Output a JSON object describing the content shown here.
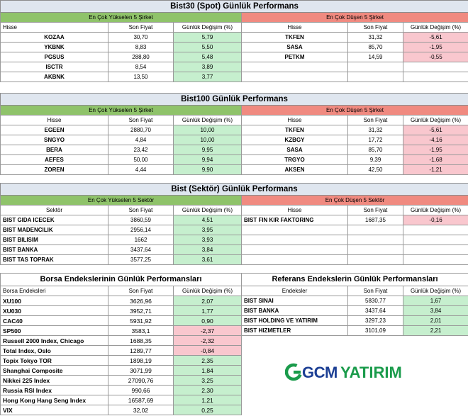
{
  "bist30": {
    "title": "Bist30 (Spot) Günlük Performans",
    "up_header": "En Çok Yükselen 5 Şirket",
    "down_header": "En Çok Düşen 5 Şirket",
    "cols": [
      "Hisse",
      "Son Fiyat",
      "Günlük Değişim (%)"
    ],
    "up": [
      [
        "KOZAA",
        "30,70",
        "5,79"
      ],
      [
        "YKBNK",
        "8,83",
        "5,50"
      ],
      [
        "PGSUS",
        "288,80",
        "5,48"
      ],
      [
        "ISCTR",
        "8,54",
        "3,89"
      ],
      [
        "AKBNK",
        "13,50",
        "3,77"
      ]
    ],
    "down": [
      [
        "TKFEN",
        "31,32",
        "-5,61"
      ],
      [
        "SASA",
        "85,70",
        "-1,95"
      ],
      [
        "PETKM",
        "14,59",
        "-0,55"
      ],
      [
        "",
        "",
        ""
      ],
      [
        "",
        "",
        ""
      ]
    ]
  },
  "bist100": {
    "title": "Bist100 Günlük Performans",
    "up_header": "En Çok Yükselen 5 Şirket",
    "down_header": "En Çok Düşen 5 Şirket",
    "cols": [
      "Hisse",
      "Son Fiyat",
      "Günlük Değişim (%)"
    ],
    "up": [
      [
        "EGEEN",
        "2880,70",
        "10,00"
      ],
      [
        "SNGYO",
        "4,84",
        "10,00"
      ],
      [
        "BERA",
        "23,42",
        "9,95"
      ],
      [
        "AEFES",
        "50,00",
        "9,94"
      ],
      [
        "ZOREN",
        "4,44",
        "9,90"
      ]
    ],
    "down": [
      [
        "TKFEN",
        "31,32",
        "-5,61"
      ],
      [
        "KZBGY",
        "17,72",
        "-4,16"
      ],
      [
        "SASA",
        "85,70",
        "-1,95"
      ],
      [
        "TRGYO",
        "9,39",
        "-1,68"
      ],
      [
        "AKSEN",
        "42,50",
        "-1,21"
      ]
    ]
  },
  "sektor": {
    "title": "Bist (Sektör) Günlük Performans",
    "up_header": "En Çok Yükselen 5 Sektör",
    "down_header": "En Çok Düşen 5 Sektör",
    "up_cols": [
      "Sektör",
      "Son Fiyat",
      "Günlük Değişim (%)"
    ],
    "down_cols": [
      "Hisse",
      "Son Fiyat",
      "Günlük Değişim (%)"
    ],
    "up": [
      [
        "BIST GIDA ICECEK",
        "3860,59",
        "4,51"
      ],
      [
        "BIST MADENCILIK",
        "2956,14",
        "3,95"
      ],
      [
        "BIST BILISIM",
        "1662",
        "3,93"
      ],
      [
        "BIST BANKA",
        "3437,64",
        "3,84"
      ],
      [
        "BIST TAS TOPRAK",
        "3577,25",
        "3,61"
      ]
    ],
    "down": [
      [
        "BIST FIN KIR FAKTORING",
        "1687,35",
        "-0,16"
      ],
      [
        "",
        "",
        ""
      ],
      [
        "",
        "",
        ""
      ],
      [
        "",
        "",
        ""
      ],
      [
        "",
        "",
        ""
      ]
    ]
  },
  "borsa": {
    "title": "Borsa Endekslerinin Günlük Performansları",
    "cols": [
      "Borsa Endeksleri",
      "Son Fiyat",
      "Günlük Değişim (%)"
    ],
    "rows": [
      [
        "XU100",
        "3626,96",
        "2,07"
      ],
      [
        "XU030",
        "3952,71",
        "1,77"
      ],
      [
        "CAC40",
        "5931,92",
        "0,90"
      ],
      [
        "SP500",
        "3583,1",
        "-2,37"
      ],
      [
        "Russell 2000 Index, Chicago",
        "1688,35",
        "-2,32"
      ],
      [
        "Total Index, Oslo",
        "1289,77",
        "-0,84"
      ],
      [
        "Topix Tokyo TOR",
        "1898,19",
        "2,35"
      ],
      [
        "Shanghai Composite",
        "3071,99",
        "1,84"
      ],
      [
        "Nikkei 225 Index",
        "27090,76",
        "3,25"
      ],
      [
        "Russia RSI Index",
        "990,66",
        "2,30"
      ],
      [
        "Hong Kong Hang Seng Index",
        "16587,69",
        "1,21"
      ],
      [
        "VIX",
        "32,02",
        "0,25"
      ]
    ]
  },
  "referans": {
    "title": "Referans Endekslerin  Günlük Performansları",
    "cols": [
      "Endeksler",
      "Son Fiyat",
      "Günlük Değişim (%)"
    ],
    "rows": [
      [
        "BIST SINAI",
        "5830,77",
        "1,67"
      ],
      [
        "BIST BANKA",
        "3437,64",
        "3,84"
      ],
      [
        "BIST HOLDING VE YATIRIM",
        "3297,23",
        "2,01"
      ],
      [
        "BIST HIZMETLER",
        "3101,09",
        "2,21"
      ]
    ]
  },
  "logo": {
    "text_gcm": "GCM",
    "text_yatirim": "YATIRIM",
    "brand_green": "#1a9b4b",
    "brand_blue": "#1c3f94"
  },
  "colors": {
    "positive": "#c6efce",
    "negative": "#f9c7ce",
    "up_header": "#8fc36a",
    "down_header": "#f08a80"
  }
}
